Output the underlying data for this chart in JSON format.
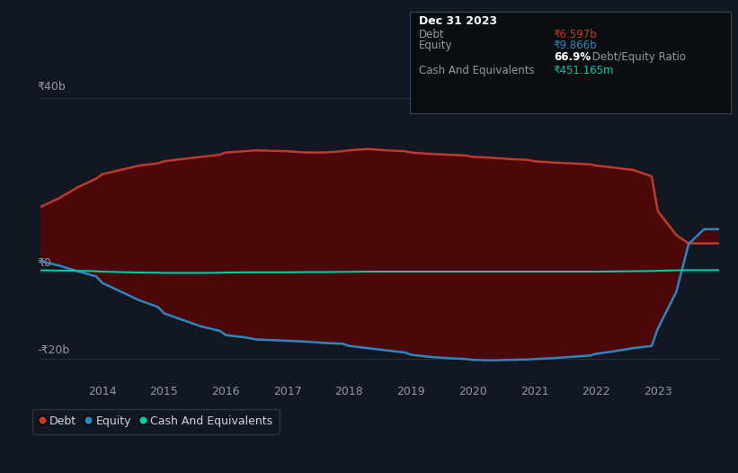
{
  "background_color": "#131722",
  "plot_bg_color": "#131722",
  "title": "Dec 31 2023",
  "tooltip_debt_label": "Debt",
  "tooltip_debt_value": "₹6.597b",
  "tooltip_equity_label": "Equity",
  "tooltip_equity_value": "₹9.866b",
  "tooltip_ratio_bold": "66.9%",
  "tooltip_ratio_rest": " Debt/Equity Ratio",
  "tooltip_cash_label": "Cash And Equivalents",
  "tooltip_cash_value": "₹451.165m",
  "ylabel_top": "₹40b",
  "ylabel_bottom": "-₹20b",
  "ylabel_zero": "₹0",
  "x_labels": [
    "2014",
    "2015",
    "2016",
    "2017",
    "2018",
    "2019",
    "2020",
    "2021",
    "2022",
    "2023"
  ],
  "debt_color": "#c0392b",
  "fill_color": "#4a0808",
  "equity_color": "#2e86c1",
  "cash_color": "#00c9a7",
  "grid_color": "#2a2e39",
  "text_color": "#9598a1",
  "white_color": "#d1d4dc",
  "legend_border_color": "#363c4e",
  "years": [
    2013.0,
    2013.3,
    2013.6,
    2013.9,
    2014.0,
    2014.3,
    2014.6,
    2014.9,
    2015.0,
    2015.3,
    2015.6,
    2015.9,
    2016.0,
    2016.3,
    2016.5,
    2017.0,
    2017.3,
    2017.6,
    2017.9,
    2018.0,
    2018.3,
    2018.6,
    2018.9,
    2019.0,
    2019.3,
    2019.6,
    2019.9,
    2020.0,
    2020.3,
    2020.6,
    2020.9,
    2021.0,
    2021.3,
    2021.6,
    2021.9,
    2022.0,
    2022.3,
    2022.6,
    2022.9,
    2023.0,
    2023.3,
    2023.5,
    2023.75,
    2024.0
  ],
  "debt": [
    15.0,
    17.0,
    19.5,
    21.5,
    22.5,
    23.5,
    24.5,
    25.0,
    25.5,
    26.0,
    26.5,
    27.0,
    27.5,
    27.8,
    28.0,
    27.8,
    27.5,
    27.5,
    27.8,
    28.0,
    28.3,
    28.0,
    27.8,
    27.5,
    27.2,
    27.0,
    26.8,
    26.5,
    26.3,
    26.0,
    25.8,
    25.5,
    25.2,
    25.0,
    24.8,
    24.5,
    24.0,
    23.5,
    22.0,
    14.0,
    8.5,
    6.6,
    6.597,
    6.597
  ],
  "equity": [
    2.5,
    1.5,
    0.2,
    -1.0,
    -2.5,
    -4.5,
    -6.5,
    -8.0,
    -9.5,
    -11.0,
    -12.5,
    -13.5,
    -14.5,
    -15.0,
    -15.5,
    -15.8,
    -16.0,
    -16.3,
    -16.5,
    -17.0,
    -17.5,
    -18.0,
    -18.5,
    -19.0,
    -19.5,
    -19.8,
    -20.0,
    -20.2,
    -20.3,
    -20.2,
    -20.1,
    -20.0,
    -19.8,
    -19.5,
    -19.2,
    -18.8,
    -18.2,
    -17.5,
    -17.0,
    -13.0,
    -4.5,
    6.5,
    9.866,
    9.866
  ],
  "cash": [
    0.4,
    0.35,
    0.3,
    0.2,
    0.1,
    0.0,
    -0.1,
    -0.15,
    -0.2,
    -0.2,
    -0.2,
    -0.15,
    -0.1,
    -0.05,
    -0.05,
    -0.05,
    -0.0,
    0.0,
    0.05,
    0.05,
    0.1,
    0.1,
    0.1,
    0.1,
    0.1,
    0.1,
    0.1,
    0.1,
    0.1,
    0.1,
    0.1,
    0.1,
    0.1,
    0.1,
    0.1,
    0.1,
    0.15,
    0.2,
    0.25,
    0.3,
    0.4,
    0.45,
    0.451,
    0.451
  ],
  "ylim": [
    -25,
    43
  ],
  "xlim_min": 2013.0,
  "xlim_max": 2024.0
}
